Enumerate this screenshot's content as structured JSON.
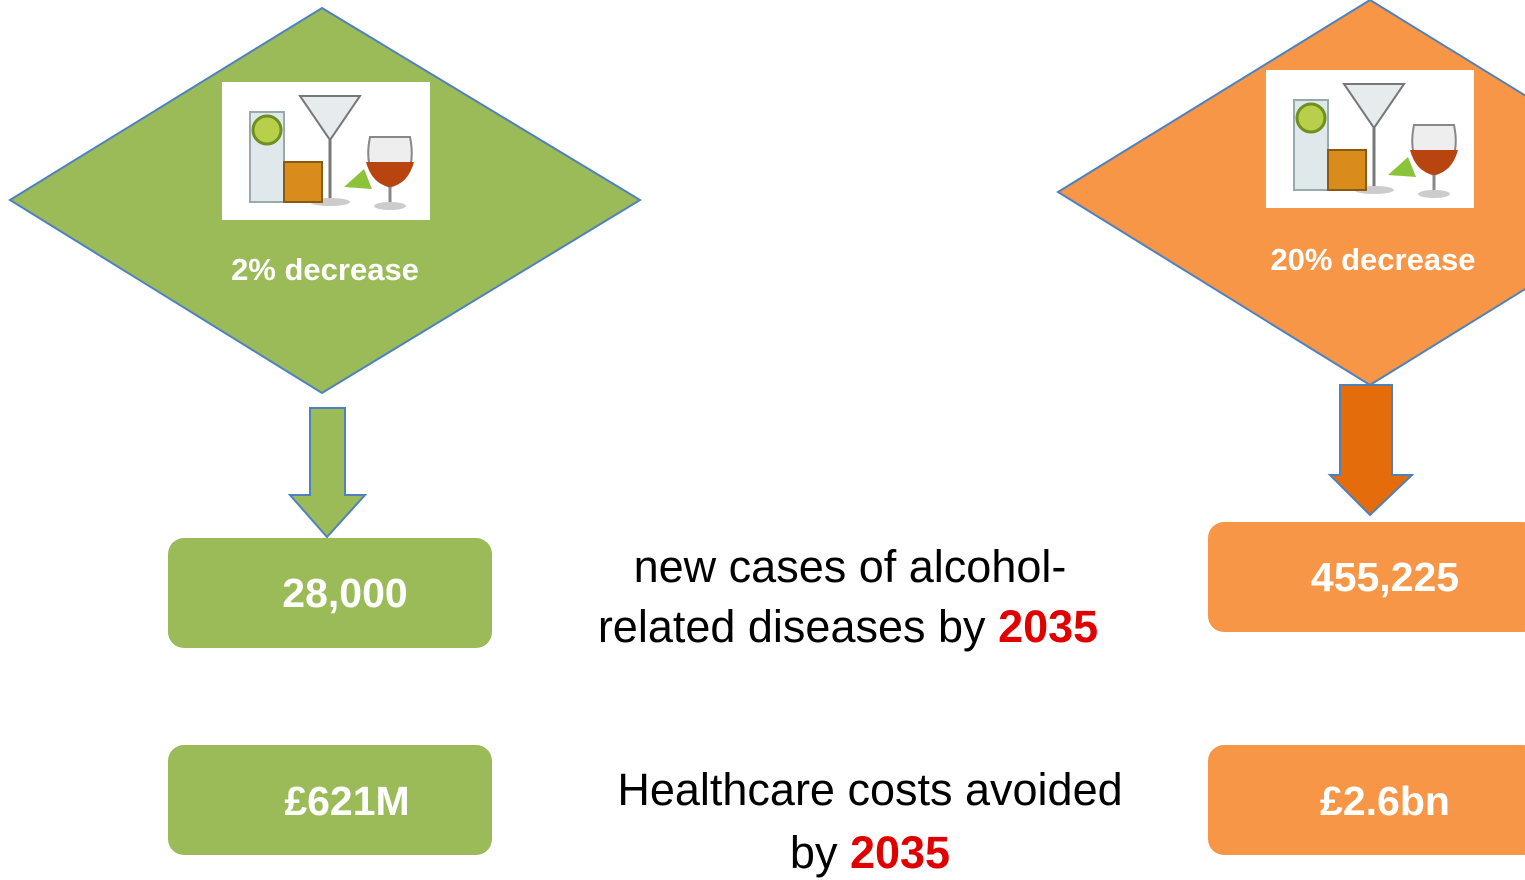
{
  "scenarios": [
    {
      "label": "2% decrease",
      "cases": "28,000",
      "costs": "£621M"
    },
    {
      "label": "20% decrease",
      "cases": "455,225",
      "costs": "£2.6bn"
    }
  ],
  "rows": [
    {
      "lines": [
        "new cases of alcohol-",
        "related diseases by"
      ],
      "year": "2035"
    },
    {
      "lines": [
        "Healthcare costs avoided",
        "by"
      ],
      "year": "2035"
    }
  ]
}
